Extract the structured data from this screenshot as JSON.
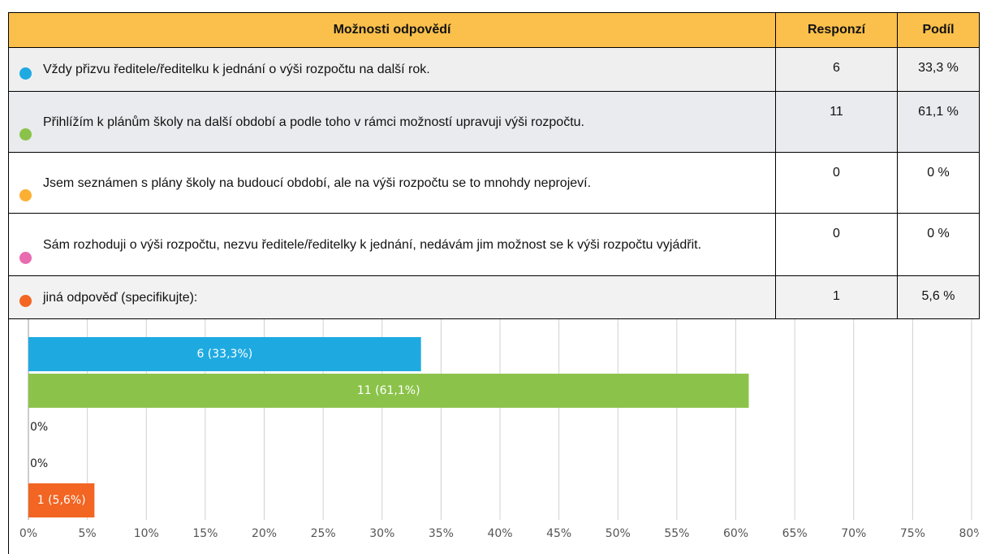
{
  "table": {
    "header": [
      "Možnosti odpovědí",
      "Responzí",
      "Podíl"
    ],
    "rows": [
      [
        "Vždy přizvu ředitele/ředitelku k jednání o výši rozpočtu na další rok.",
        "6",
        "33,3 %"
      ],
      [
        "Přihlížím k plánům školy na další období a podle toho v rámci možností upravuji výši rozpočtu.",
        "11",
        "61,1 %"
      ],
      [
        "Jsem seznámen s plány školy na budoucí období, ale na výši rozpočtu se to mnohdy neprojeví.",
        "0",
        "0 %"
      ],
      [
        "Sám rozhoduji o výši rozpočtu, nezvu ředitele/ředitelky k jednání, nedávám jim možnost se k výši rozpočtu vyjádřit.",
        "0",
        "0 %"
      ],
      [
        "jiná odpověď (specifikujte):",
        "1",
        "5,6 %"
      ]
    ]
  },
  "chart_data": {
    "type": "hbar",
    "values": [
      33.3,
      61.1,
      0,
      0,
      5.6
    ],
    "value_labels": [
      "6 (33,3%)",
      "11 (61,1%)",
      "0%",
      "0%",
      "1 (5,6%)"
    ],
    "colors": [
      "#1eaae1",
      "#8bc34a",
      "#fbb034",
      "#e96bb0",
      "#f26522"
    ],
    "xlim": [
      0,
      80
    ],
    "xticks": [
      {
        "value": 0,
        "label": "0%"
      },
      {
        "value": 5,
        "label": "5%"
      },
      {
        "value": 10,
        "label": "10%"
      },
      {
        "value": 15,
        "label": "15%"
      },
      {
        "value": 20,
        "label": "20%"
      },
      {
        "value": 25,
        "label": "25%"
      },
      {
        "value": 30,
        "label": "30%"
      },
      {
        "value": 35,
        "label": "35%"
      },
      {
        "value": 40,
        "label": "40%"
      },
      {
        "value": 45,
        "label": "45%"
      },
      {
        "value": 50,
        "label": "50%"
      },
      {
        "value": 55,
        "label": "55%"
      },
      {
        "value": 60,
        "label": "60%"
      },
      {
        "value": 65,
        "label": "65%"
      },
      {
        "value": 70,
        "label": "70%"
      },
      {
        "value": 75,
        "label": "75%"
      },
      {
        "value": 80,
        "label": "80%"
      }
    ],
    "grid": true
  }
}
